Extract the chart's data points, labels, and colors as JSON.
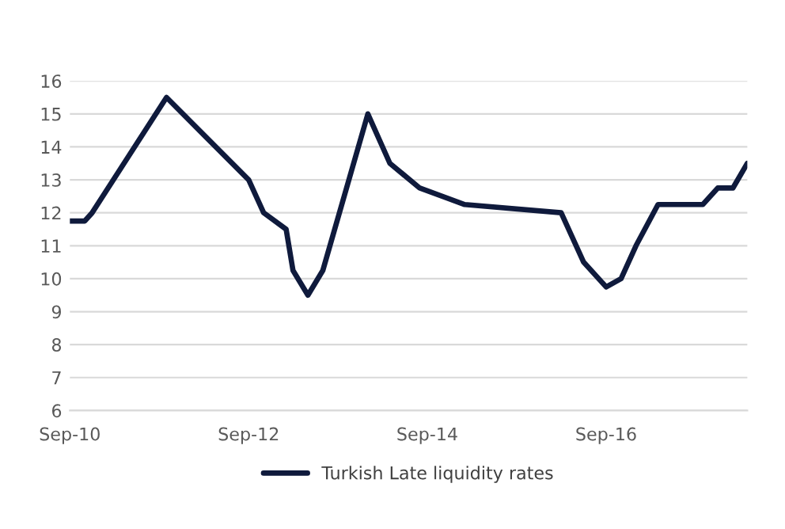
{
  "chart_data": {
    "type": "line",
    "x": [
      "2010-09",
      "2010-11",
      "2010-12",
      "2011-10",
      "2012-09",
      "2012-11",
      "2013-02",
      "2013-03",
      "2013-05",
      "2013-07",
      "2014-01",
      "2014-04",
      "2014-08",
      "2015-02",
      "2016-03",
      "2016-06",
      "2016-09",
      "2016-11",
      "2017-01",
      "2017-04",
      "2017-10",
      "2017-12",
      "2018-02",
      "2018-04"
    ],
    "series": [
      {
        "name": "Turkish Late liquidity rates",
        "color": "#0f1a3c",
        "values": [
          11.75,
          11.75,
          12.0,
          15.5,
          13.0,
          12.0,
          11.5,
          10.25,
          9.5,
          10.25,
          15.0,
          13.5,
          12.75,
          12.25,
          12.0,
          10.5,
          9.75,
          10.0,
          11.0,
          12.25,
          12.25,
          12.75,
          12.75,
          13.5
        ]
      }
    ],
    "xlim": [
      "2010-09",
      "2018-04"
    ],
    "xticks": [
      {
        "value": "2010-09",
        "label": "Sep-10"
      },
      {
        "value": "2012-09",
        "label": "Sep-12"
      },
      {
        "value": "2014-09",
        "label": "Sep-14"
      },
      {
        "value": "2016-09",
        "label": "Sep-16"
      }
    ],
    "ylim": [
      6,
      16
    ],
    "yticks": [
      6,
      7,
      8,
      9,
      10,
      11,
      12,
      13,
      14,
      15,
      16
    ],
    "grid": "y",
    "legend": "bottom",
    "marker": "none",
    "line_style": "solid"
  }
}
